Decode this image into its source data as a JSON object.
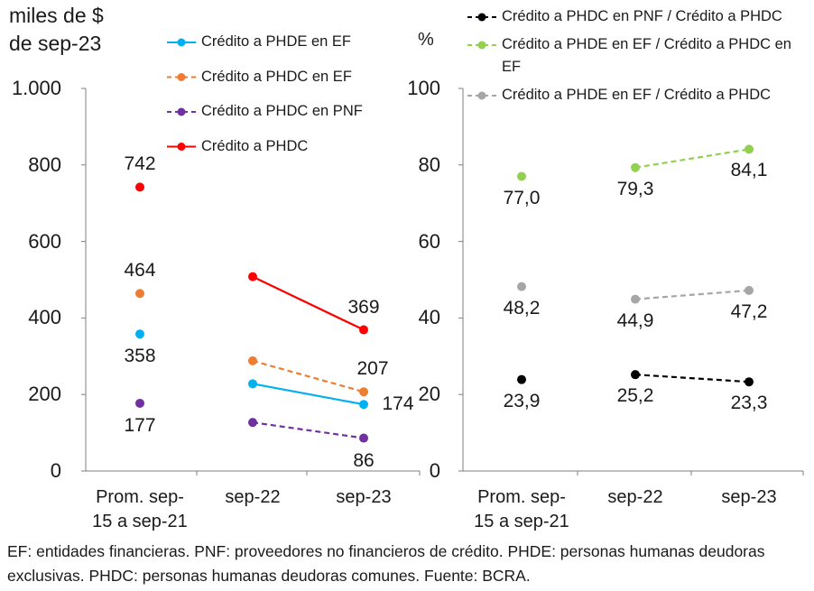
{
  "chart_data": [
    {
      "type": "line",
      "title": "miles de $ de sep-23",
      "categories": [
        "Prom. sep-15 a sep-21",
        "sep-22",
        "sep-23"
      ],
      "ylim": [
        0,
        1000
      ],
      "yticks": [
        0,
        200,
        400,
        600,
        800,
        {
          "value": 1000,
          "label": "1.000"
        }
      ],
      "series": [
        {
          "name": "Crédito a PHDE en EF",
          "color": "#00b0f0",
          "dash": false,
          "values": [
            358,
            228,
            174
          ],
          "value_labels": [
            "358",
            null,
            "174"
          ]
        },
        {
          "name": "Crédito a PHDC en EF",
          "color": "#ed7d31",
          "dash": true,
          "values": [
            464,
            288,
            207
          ],
          "value_labels": [
            "464",
            null,
            "207"
          ]
        },
        {
          "name": "Crédito a PHDC en PNF",
          "color": "#7030a0",
          "dash": true,
          "values": [
            177,
            127,
            86
          ],
          "value_labels": [
            "177",
            null,
            "86"
          ]
        },
        {
          "name": "Crédito a PHDC",
          "color": "#ff0000",
          "dash": false,
          "values": [
            742,
            508,
            369
          ],
          "value_labels": [
            "742",
            null,
            "369"
          ]
        }
      ]
    },
    {
      "type": "line",
      "y_label": "%",
      "categories": [
        "Prom. sep-15 a sep-21",
        "sep-22",
        "sep-23"
      ],
      "ylim": [
        0,
        100
      ],
      "yticks": [
        0,
        20,
        40,
        60,
        80,
        100
      ],
      "series": [
        {
          "name": "Crédito a PHDC en PNF / Crédito a PHDC",
          "color": "#000000",
          "dash": true,
          "values": [
            23.9,
            25.2,
            23.3
          ],
          "value_labels": [
            "23,9",
            "25,2",
            "23,3"
          ]
        },
        {
          "name": "Crédito a PHDE en EF / Crédito a PHDC en EF",
          "color": "#92d050",
          "dash": true,
          "values": [
            77.0,
            79.3,
            84.1
          ],
          "value_labels": [
            "77,0",
            "79,3",
            "84,1"
          ]
        },
        {
          "name": "Crédito a PHDE en EF / Crédito a PHDC",
          "color": "#a6a6a6",
          "dash": true,
          "values": [
            48.2,
            44.9,
            47.2
          ],
          "value_labels": [
            "48,2",
            "44,9",
            "47,2"
          ]
        }
      ]
    }
  ],
  "note": "EF: entidades financieras. PNF: proveedores no financieros de crédito. PHDE: personas humanas deudoras exclusivas. PHDC: personas humanas deudoras comunes. Fuente: BCRA."
}
